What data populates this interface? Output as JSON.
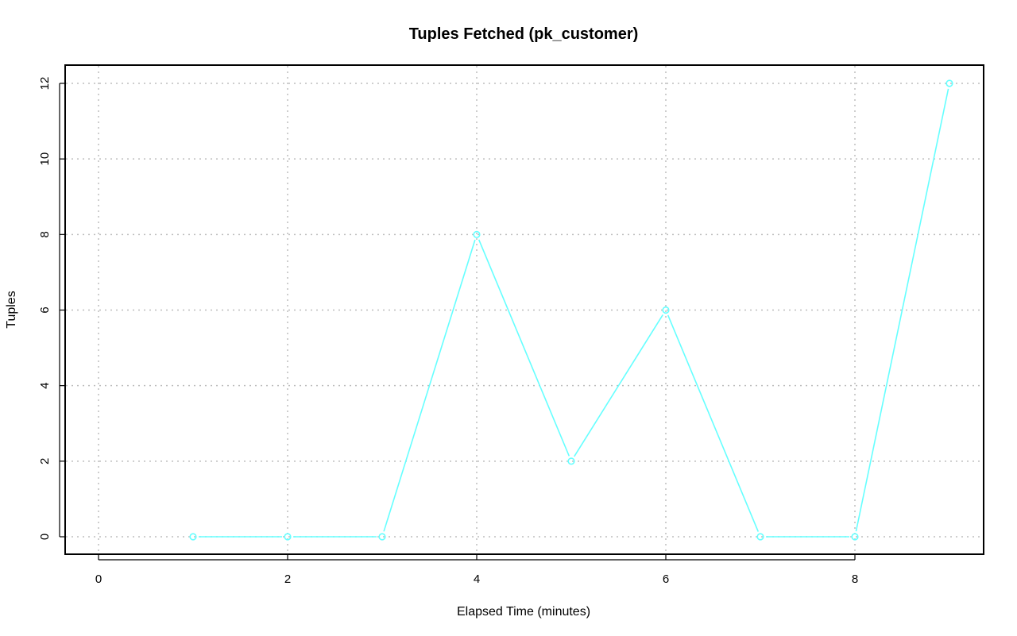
{
  "chart_data": {
    "type": "line",
    "title": "Tuples Fetched (pk_customer)",
    "xlabel": "Elapsed Time (minutes)",
    "ylabel": "Tuples",
    "xlim": [
      0,
      9
    ],
    "ylim": [
      0,
      12
    ],
    "x_ticks": [
      0,
      2,
      4,
      6,
      8
    ],
    "y_ticks": [
      0,
      2,
      4,
      6,
      8,
      10,
      12
    ],
    "grid": true,
    "series": [
      {
        "color": "#66ffff",
        "marker": "circle",
        "x": [
          1,
          2,
          3,
          4,
          5,
          6,
          7,
          8,
          9
        ],
        "y": [
          0,
          0,
          0,
          8,
          2,
          6,
          0,
          0,
          12
        ]
      }
    ]
  }
}
